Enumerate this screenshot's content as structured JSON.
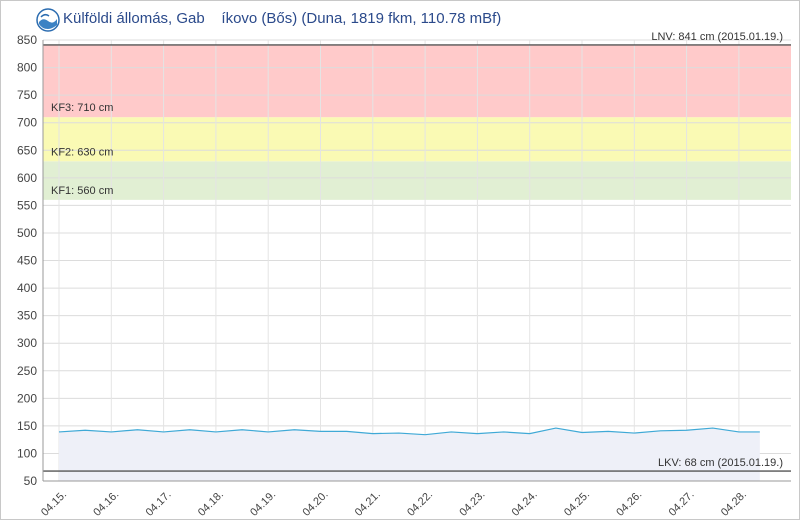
{
  "header": {
    "title": "Külföldi állomás, Gab    íkovo (Bős) (Duna, 1819 fkm, 110.78 mBf)",
    "logo_icon": "ovf-wave-logo-icon"
  },
  "chart_data": {
    "type": "area",
    "title": "Külföldi állomás, Gab    íkovo (Bős) (Duna, 1819 fkm, 110.78 mBf)",
    "xlabel": "",
    "ylabel": "",
    "ylim": [
      50,
      850
    ],
    "yticks": [
      50,
      100,
      150,
      200,
      250,
      300,
      350,
      400,
      450,
      500,
      550,
      600,
      650,
      700,
      750,
      800,
      850
    ],
    "xlim": [
      0,
      13.4
    ],
    "xticks": [
      {
        "x": 0,
        "label": "04.15."
      },
      {
        "x": 1,
        "label": "04.16."
      },
      {
        "x": 2,
        "label": "04.17."
      },
      {
        "x": 3,
        "label": "04.18."
      },
      {
        "x": 4,
        "label": "04.19."
      },
      {
        "x": 5,
        "label": "04.20."
      },
      {
        "x": 6,
        "label": "04.21."
      },
      {
        "x": 7,
        "label": "04.22."
      },
      {
        "x": 8,
        "label": "04.23."
      },
      {
        "x": 9,
        "label": "04.24."
      },
      {
        "x": 10,
        "label": "04.25."
      },
      {
        "x": 11,
        "label": "04.26."
      },
      {
        "x": 12,
        "label": "04.27."
      },
      {
        "x": 13,
        "label": "04.28."
      }
    ],
    "grid": true,
    "bands": [
      {
        "name": "KF1",
        "label": "KF1: 560 cm",
        "from": 560,
        "to": 630,
        "color": "#e1efd3"
      },
      {
        "name": "KF2",
        "label": "KF2: 630 cm",
        "from": 630,
        "to": 710,
        "color": "#fafab4"
      },
      {
        "name": "KF3",
        "label": "KF3: 710 cm",
        "from": 710,
        "to": 841,
        "color": "#ffcaca"
      }
    ],
    "reference_lines": [
      {
        "name": "LNV",
        "label": "LNV: 841 cm (2015.01.19.)",
        "value": 841,
        "label_position": "top-right"
      },
      {
        "name": "LKV",
        "label": "LKV: 68 cm (2015.01.19.)",
        "value": 68,
        "label_position": "top-right"
      }
    ],
    "series": [
      {
        "color": "#3fa9d6",
        "fill": "#eef0f8",
        "x": [
          0,
          0.5,
          1,
          1.5,
          2,
          2.5,
          3,
          3.5,
          4,
          4.5,
          5,
          5.5,
          6,
          6.5,
          7,
          7.5,
          8,
          8.5,
          9,
          9.5,
          10,
          10.5,
          11,
          11.5,
          12,
          12.5,
          13,
          13.4
        ],
        "values": [
          139,
          142,
          139,
          143,
          139,
          143,
          139,
          143,
          139,
          143,
          140,
          140,
          136,
          137,
          134,
          139,
          136,
          139,
          136,
          146,
          138,
          140,
          137,
          141,
          142,
          146,
          139,
          139
        ]
      }
    ]
  }
}
